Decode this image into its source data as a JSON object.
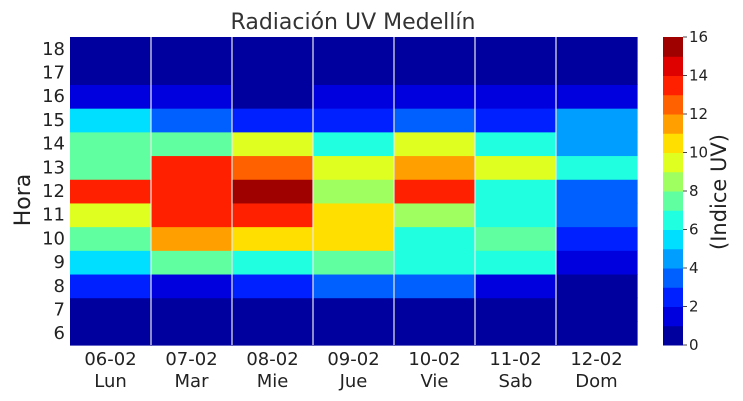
{
  "chart_data": {
    "type": "heatmap",
    "title": "Radiación UV Medellín",
    "ylabel": "Hora",
    "colorbar_label": "(Indice UV)",
    "colormap": "jet",
    "vmin": 0,
    "vmax": 16,
    "colorbar_ticks": [
      "0",
      "2",
      "4",
      "6",
      "8",
      "10",
      "12",
      "14",
      "16"
    ],
    "x_dates": [
      "06-02",
      "07-02",
      "08-02",
      "09-02",
      "10-02",
      "11-02",
      "12-02"
    ],
    "x_days": [
      "Lun",
      "Mar",
      "Mie",
      "Jue",
      "Vie",
      "Sab",
      "Dom"
    ],
    "y_hours": [
      "6",
      "7",
      "8",
      "9",
      "10",
      "11",
      "12",
      "13",
      "14",
      "15",
      "16",
      "17",
      "18"
    ],
    "grid": true,
    "values": [
      [
        0,
        0,
        2,
        5,
        7,
        9,
        13,
        7,
        7,
        5,
        1,
        0,
        0
      ],
      [
        0,
        0,
        1,
        7,
        11,
        13,
        13,
        13,
        7,
        3,
        1,
        0,
        0
      ],
      [
        0,
        0,
        2,
        6,
        10,
        13,
        15,
        12,
        9,
        2,
        0,
        0,
        0
      ],
      [
        0,
        0,
        3,
        7,
        10,
        10,
        8,
        9,
        6,
        2,
        1,
        0,
        0
      ],
      [
        0,
        0,
        3,
        6,
        6,
        8,
        13,
        11,
        9,
        3,
        1,
        0,
        0
      ],
      [
        0,
        0,
        1,
        6,
        7,
        6,
        6,
        9,
        6,
        2,
        1,
        0,
        0
      ],
      [
        0,
        0,
        0,
        1,
        2,
        3,
        3,
        6,
        4,
        4,
        1,
        0,
        0
      ]
    ]
  }
}
